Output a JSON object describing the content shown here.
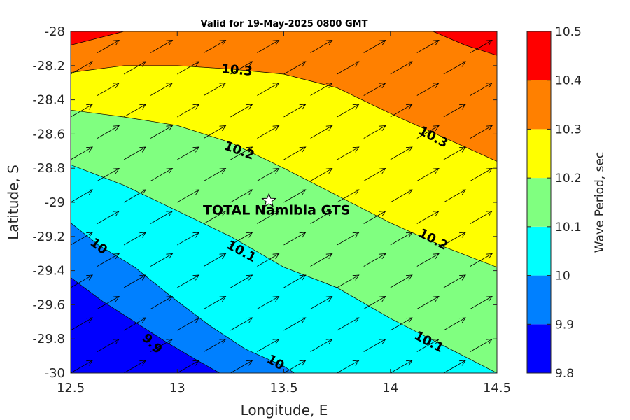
{
  "chart_data": {
    "type": "contour",
    "title": "Valid for 19-May-2025 0800 GMT",
    "xlabel": "Longitude, E",
    "ylabel": "Latitude, S",
    "xlim": [
      12.5,
      14.5
    ],
    "ylim": [
      -30,
      -28
    ],
    "xticks": [
      "12.5",
      "13",
      "13.5",
      "14",
      "14.5"
    ],
    "yticks": [
      "-28",
      "-28.2",
      "-28.4",
      "-28.6",
      "-28.8",
      "-29",
      "-29.2",
      "-29.4",
      "-29.6",
      "-29.8",
      "-30"
    ],
    "colorbar": {
      "label": "Wave Period, sec",
      "ticks": [
        "9.8",
        "9.9",
        "10",
        "10.1",
        "10.2",
        "10.3",
        "10.4",
        "10.5"
      ],
      "levels": [
        9.8,
        9.9,
        10.0,
        10.1,
        10.2,
        10.3,
        10.4,
        10.5
      ],
      "colors": [
        "#0000ff",
        "#0080ff",
        "#00ffff",
        "#80ff80",
        "#ffff00",
        "#ff8000",
        "#ff0000"
      ]
    },
    "contours": [
      {
        "level": 9.9,
        "points": [
          [
            12.5,
            -29.44
          ],
          [
            12.65,
            -29.58
          ],
          [
            12.8,
            -29.7
          ],
          [
            12.95,
            -29.82
          ],
          [
            13.1,
            -29.93
          ],
          [
            13.2,
            -30.0
          ]
        ]
      },
      {
        "level": 10.0,
        "points": [
          [
            12.5,
            -29.12
          ],
          [
            12.63,
            -29.25
          ],
          [
            12.8,
            -29.38
          ],
          [
            12.97,
            -29.55
          ],
          [
            13.15,
            -29.72
          ],
          [
            13.32,
            -29.86
          ],
          [
            13.5,
            -29.96
          ],
          [
            13.55,
            -30.0
          ]
        ]
      },
      {
        "level": 10.1,
        "points": [
          [
            12.5,
            -28.78
          ],
          [
            12.75,
            -28.9
          ],
          [
            13.0,
            -29.05
          ],
          [
            13.25,
            -29.2
          ],
          [
            13.5,
            -29.38
          ],
          [
            13.75,
            -29.5
          ],
          [
            14.0,
            -29.68
          ],
          [
            14.25,
            -29.84
          ],
          [
            14.5,
            -30.0
          ]
        ]
      },
      {
        "level": 10.2,
        "points": [
          [
            12.5,
            -28.46
          ],
          [
            12.75,
            -28.5
          ],
          [
            13.0,
            -28.55
          ],
          [
            13.25,
            -28.65
          ],
          [
            13.5,
            -28.8
          ],
          [
            13.75,
            -28.96
          ],
          [
            14.0,
            -29.12
          ],
          [
            14.25,
            -29.26
          ],
          [
            14.5,
            -29.38
          ]
        ]
      },
      {
        "level": 10.3,
        "points": [
          [
            12.5,
            -28.24
          ],
          [
            12.75,
            -28.2
          ],
          [
            13.0,
            -28.2
          ],
          [
            13.25,
            -28.22
          ],
          [
            13.5,
            -28.25
          ],
          [
            13.75,
            -28.33
          ],
          [
            14.0,
            -28.48
          ],
          [
            14.25,
            -28.62
          ],
          [
            14.5,
            -28.76
          ]
        ]
      },
      {
        "level": 10.4,
        "left": [
          [
            12.5,
            -28.08
          ],
          [
            12.75,
            -28.0
          ]
        ],
        "right": [
          [
            14.2,
            -28.0
          ],
          [
            14.35,
            -28.08
          ],
          [
            14.5,
            -28.14
          ]
        ]
      }
    ],
    "contour_labels": [
      {
        "text": "10.3",
        "lon": 13.28,
        "lat": -28.23,
        "angle": 5
      },
      {
        "text": "10.3",
        "lon": 14.2,
        "lat": -28.62,
        "angle": 28
      },
      {
        "text": "10.2",
        "lon": 13.29,
        "lat": -28.7,
        "angle": 20
      },
      {
        "text": "10.2",
        "lon": 14.2,
        "lat": -29.22,
        "angle": 28
      },
      {
        "text": "10.1",
        "lon": 13.3,
        "lat": -29.29,
        "angle": 28
      },
      {
        "text": "10.1",
        "lon": 14.18,
        "lat": -29.82,
        "angle": 28
      },
      {
        "text": "10",
        "lon": 12.63,
        "lat": -29.26,
        "angle": 38
      },
      {
        "text": "10",
        "lon": 13.46,
        "lat": -29.94,
        "angle": 30
      },
      {
        "text": "9.9",
        "lon": 12.88,
        "lat": -29.83,
        "angle": 45
      }
    ],
    "vector_field": {
      "description": "wave direction arrows",
      "lon": [
        12.5,
        12.625,
        12.75,
        12.875,
        13.0,
        13.125,
        13.25,
        13.375,
        13.5,
        13.625,
        13.75,
        13.875,
        14.0,
        14.125,
        14.25,
        14.375,
        14.5
      ],
      "lat": [
        -28.0,
        -28.125,
        -28.25,
        -28.375,
        -28.5,
        -28.625,
        -28.75,
        -28.875,
        -29.0,
        -29.125,
        -29.25,
        -29.375,
        -29.5,
        -29.625,
        -29.75,
        -29.875,
        -30.0
      ],
      "direction_deg": 60
    },
    "marker": {
      "symbol": "star",
      "lon": 13.43,
      "lat": -28.99,
      "label": "TOTAL Namibia GTS"
    }
  }
}
